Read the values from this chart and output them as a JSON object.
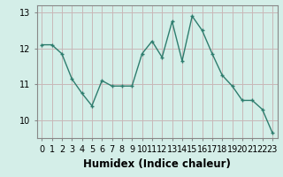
{
  "x": [
    0,
    1,
    2,
    3,
    4,
    5,
    6,
    7,
    8,
    9,
    10,
    11,
    12,
    13,
    14,
    15,
    16,
    17,
    18,
    19,
    20,
    21,
    22,
    23
  ],
  "y": [
    12.1,
    12.1,
    11.85,
    11.15,
    10.75,
    10.4,
    11.1,
    10.95,
    10.95,
    10.95,
    11.85,
    12.2,
    11.75,
    12.75,
    11.65,
    12.9,
    12.5,
    11.85,
    11.25,
    10.95,
    10.55,
    10.55,
    10.3,
    9.65
  ],
  "line_color": "#2e7d6e",
  "marker_color": "#2e7d6e",
  "bg_color": "#d4eee8",
  "grid_color": "#c8b8b8",
  "xlabel": "Humidex (Indice chaleur)",
  "ylim": [
    9.5,
    13.2
  ],
  "xlim": [
    -0.5,
    23.5
  ],
  "yticks": [
    10,
    11,
    12,
    13
  ],
  "xticks": [
    0,
    1,
    2,
    3,
    4,
    5,
    6,
    7,
    8,
    9,
    10,
    11,
    12,
    13,
    14,
    15,
    16,
    17,
    18,
    19,
    20,
    21,
    22,
    23
  ],
  "xtick_labels": [
    "0",
    "1",
    "2",
    "3",
    "4",
    "5",
    "6",
    "7",
    "8",
    "9",
    "10",
    "11",
    "12",
    "13",
    "14",
    "15",
    "16",
    "17",
    "18",
    "19",
    "20",
    "21",
    "22",
    "23"
  ],
  "ytick_labels": [
    "10",
    "11",
    "12",
    "13"
  ],
  "linewidth": 1.0,
  "markersize": 3.5,
  "xlabel_fontsize": 8.5,
  "tick_fontsize": 7,
  "spine_color": "#888888"
}
